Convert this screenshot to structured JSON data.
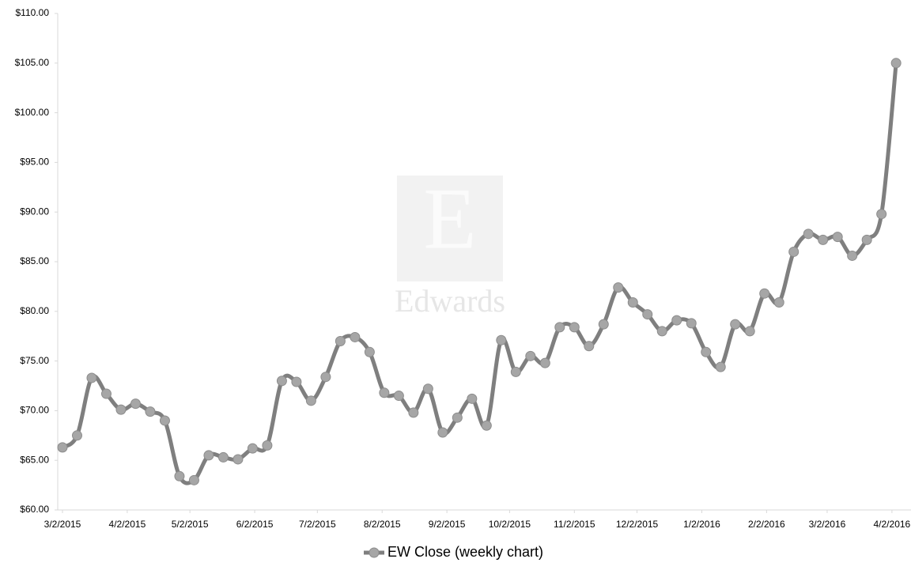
{
  "chart_data": {
    "type": "line",
    "watermark": "Edwards",
    "series": [
      {
        "name": "EW Close (weekly chart)",
        "color": "#7f7f7f",
        "marker_color": "#a6a6a6",
        "values": [
          66.3,
          67.5,
          73.3,
          71.7,
          70.1,
          70.7,
          69.9,
          69.0,
          63.4,
          63.0,
          65.5,
          65.3,
          65.1,
          66.2,
          66.5,
          73.0,
          72.9,
          71.0,
          73.4,
          77.0,
          77.4,
          75.9,
          71.8,
          71.5,
          69.8,
          72.2,
          67.8,
          69.3,
          71.2,
          68.5,
          77.1,
          73.9,
          75.5,
          74.8,
          78.4,
          78.4,
          76.5,
          78.7,
          82.4,
          80.9,
          79.7,
          78.0,
          79.1,
          78.8,
          75.9,
          74.4,
          78.7,
          78.0,
          81.8,
          80.9,
          86.0,
          87.8,
          87.2,
          87.5,
          85.6,
          87.2,
          89.8,
          105.0
        ]
      }
    ],
    "xticks": [
      "3/2/2015",
      "4/2/2015",
      "5/2/2015",
      "6/2/2015",
      "7/2/2015",
      "8/2/2015",
      "9/2/2015",
      "10/2/2015",
      "11/2/2015",
      "12/2/2015",
      "1/2/2016",
      "2/2/2016",
      "3/2/2016",
      "4/2/2016"
    ],
    "ylim": [
      60,
      110
    ],
    "yticks": [
      {
        "value": 60,
        "label": "$60.00"
      },
      {
        "value": 65,
        "label": "$65.00"
      },
      {
        "value": 70,
        "label": "$70.00"
      },
      {
        "value": 75,
        "label": "$75.00"
      },
      {
        "value": 80,
        "label": "$80.00"
      },
      {
        "value": 85,
        "label": "$85.00"
      },
      {
        "value": 90,
        "label": "$90.00"
      },
      {
        "value": 95,
        "label": "$95.00"
      },
      {
        "value": 100,
        "label": "$100.00"
      },
      {
        "value": 105,
        "label": "$105.00"
      },
      {
        "value": 110,
        "label": "$110.00"
      }
    ],
    "legend": "bottom"
  }
}
